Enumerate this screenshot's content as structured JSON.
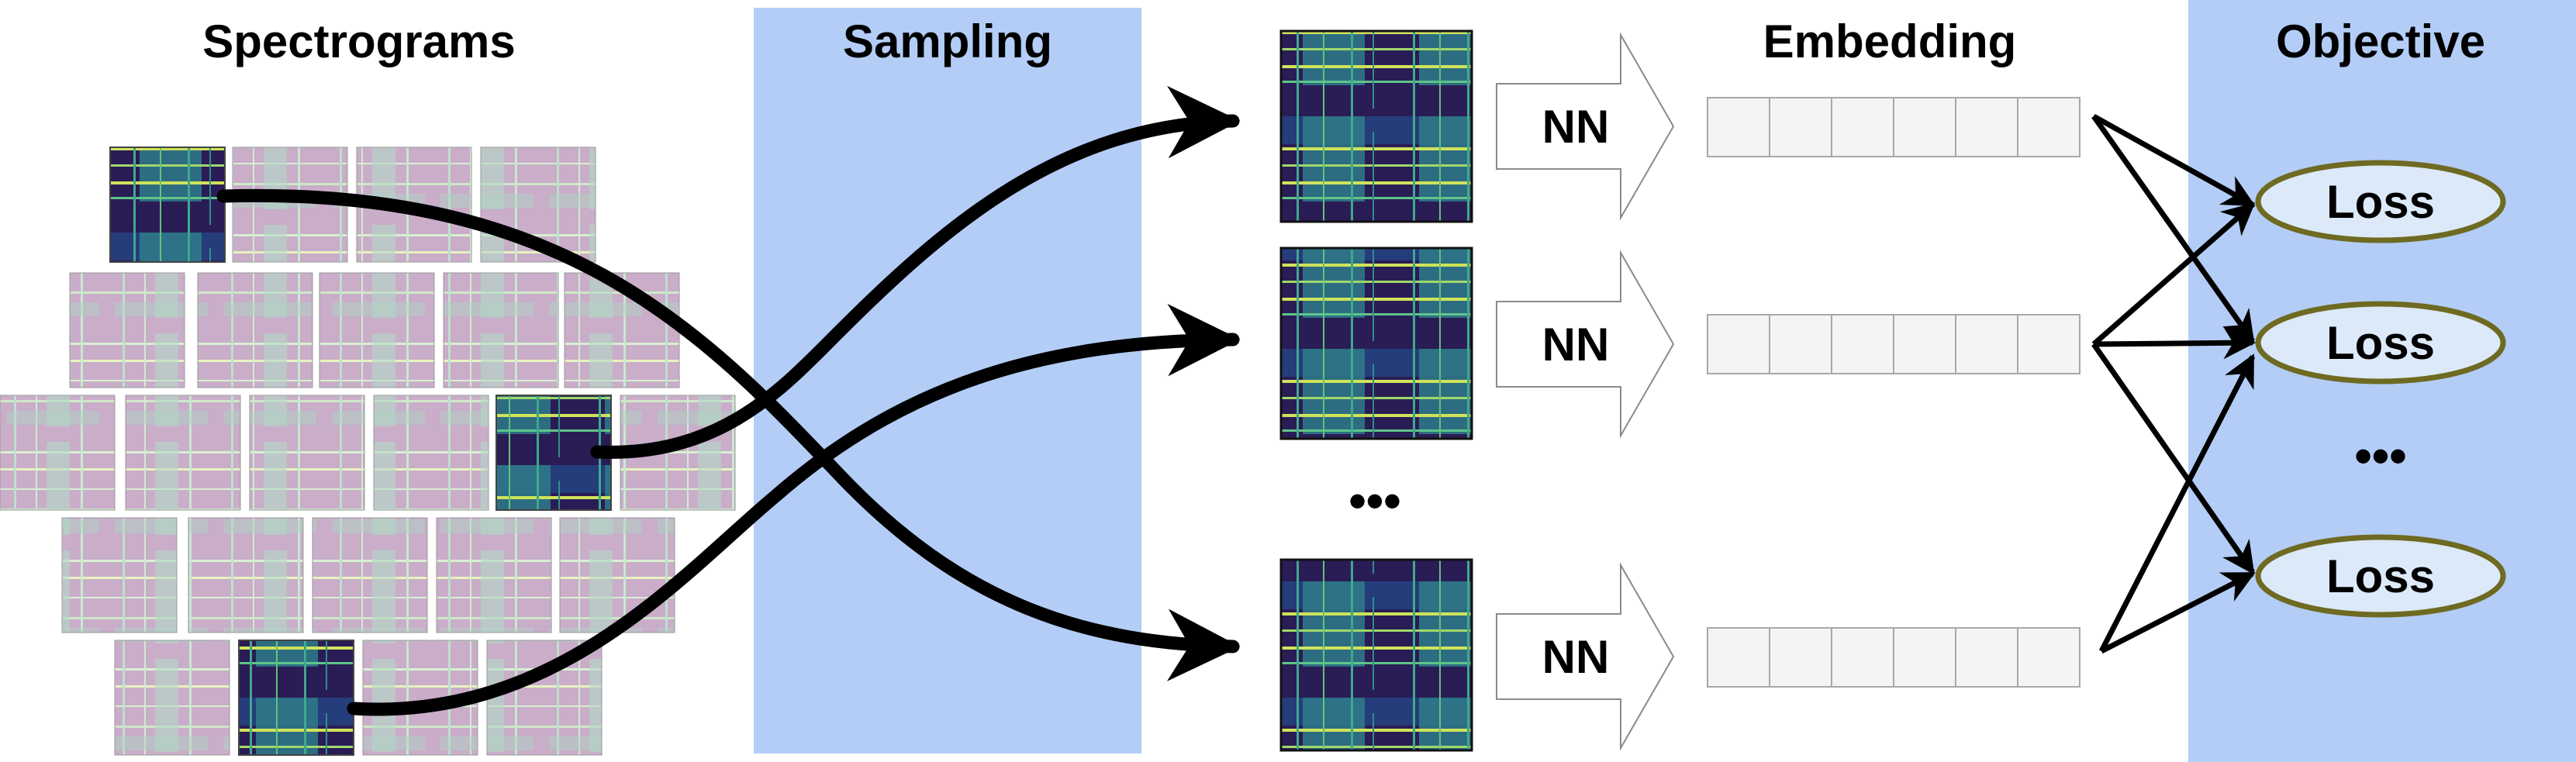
{
  "titles": {
    "spectrograms": "Spectrograms",
    "sampling": "Sampling",
    "embedding": "Embedding",
    "objective": "Objective"
  },
  "network_label": "NN",
  "loss_label": "Loss",
  "ellipsis": "•••",
  "colors": {
    "panel_blue": "#b3cdf7",
    "arrow_black": "#000000",
    "loss_fill": "#dce9f8",
    "loss_stroke": "#6e6a22",
    "embed_cell_fill": "#f4f4f4",
    "embed_cell_stroke": "#a8a8a8",
    "spec_faded": "#c8a8c8",
    "spec_dark": "#2b1d55",
    "spec_teal": "#2f8f8a",
    "spec_yellow": "#cfe35a"
  },
  "icons": {
    "nn_block": "right-block-arrow",
    "sample": "spectrogram-thumbnail"
  }
}
